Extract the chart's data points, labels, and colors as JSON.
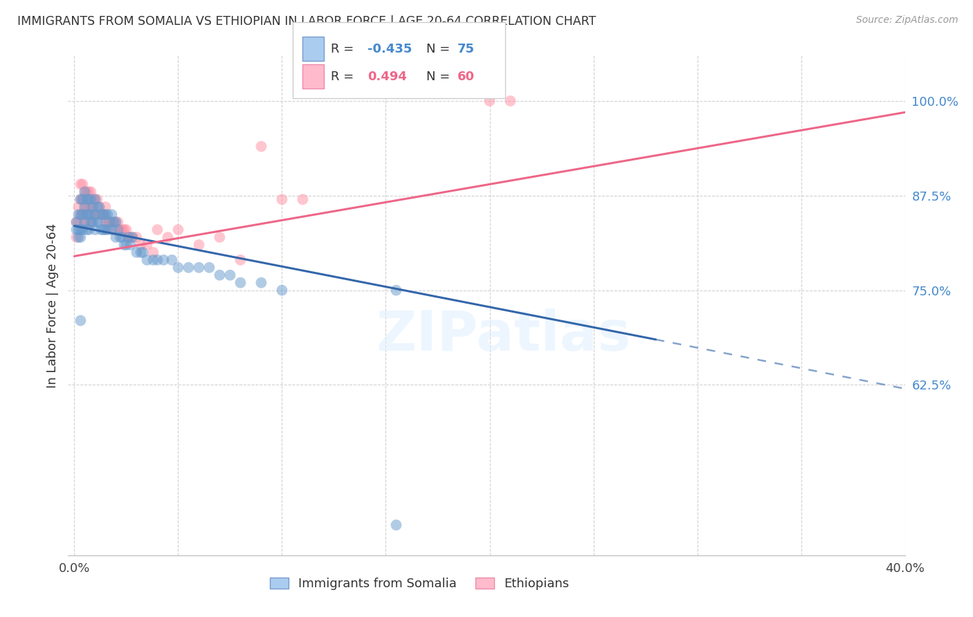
{
  "title": "IMMIGRANTS FROM SOMALIA VS ETHIOPIAN IN LABOR FORCE | AGE 20-64 CORRELATION CHART",
  "source": "Source: ZipAtlas.com",
  "ylabel": "In Labor Force | Age 20-64",
  "y_ticks": [
    0.625,
    0.75,
    0.875,
    1.0
  ],
  "y_tick_labels": [
    "62.5%",
    "75.0%",
    "87.5%",
    "100.0%"
  ],
  "x_tick_positions": [
    0.0,
    0.05,
    0.1,
    0.15,
    0.2,
    0.25,
    0.3,
    0.35,
    0.4
  ],
  "x_tick_labels": [
    "0.0%",
    "",
    "",
    "",
    "",
    "",
    "",
    "",
    "40.0%"
  ],
  "xlim": [
    -0.003,
    0.4
  ],
  "ylim": [
    0.4,
    1.06
  ],
  "somalia_color": "#6699CC",
  "ethiopia_color": "#FF8FA3",
  "somalia_line_color": "#3366AA",
  "ethiopia_line_color": "#EE6688",
  "somalia_R": -0.435,
  "somalia_N": 75,
  "ethiopia_R": 0.494,
  "ethiopia_N": 60,
  "watermark": "ZIPatlas",
  "background_color": "#ffffff",
  "grid_color": "#cccccc",
  "somalia_scatter_x": [
    0.001,
    0.001,
    0.002,
    0.002,
    0.002,
    0.003,
    0.003,
    0.003,
    0.003,
    0.004,
    0.004,
    0.004,
    0.005,
    0.005,
    0.005,
    0.006,
    0.006,
    0.006,
    0.007,
    0.007,
    0.007,
    0.008,
    0.008,
    0.008,
    0.009,
    0.009,
    0.01,
    0.01,
    0.01,
    0.011,
    0.011,
    0.012,
    0.012,
    0.013,
    0.013,
    0.014,
    0.014,
    0.015,
    0.015,
    0.016,
    0.016,
    0.017,
    0.018,
    0.018,
    0.019,
    0.02,
    0.02,
    0.021,
    0.022,
    0.023,
    0.024,
    0.025,
    0.026,
    0.027,
    0.028,
    0.03,
    0.032,
    0.033,
    0.035,
    0.038,
    0.04,
    0.043,
    0.047,
    0.05,
    0.055,
    0.06,
    0.065,
    0.07,
    0.075,
    0.08,
    0.09,
    0.1,
    0.155,
    0.003,
    0.155
  ],
  "somalia_scatter_y": [
    0.84,
    0.83,
    0.85,
    0.83,
    0.82,
    0.87,
    0.85,
    0.83,
    0.82,
    0.87,
    0.85,
    0.83,
    0.88,
    0.86,
    0.84,
    0.87,
    0.85,
    0.83,
    0.87,
    0.85,
    0.83,
    0.87,
    0.85,
    0.84,
    0.86,
    0.84,
    0.87,
    0.85,
    0.83,
    0.86,
    0.84,
    0.86,
    0.84,
    0.85,
    0.83,
    0.85,
    0.83,
    0.85,
    0.83,
    0.85,
    0.83,
    0.84,
    0.85,
    0.83,
    0.84,
    0.84,
    0.82,
    0.83,
    0.82,
    0.82,
    0.81,
    0.81,
    0.82,
    0.81,
    0.82,
    0.8,
    0.8,
    0.8,
    0.79,
    0.79,
    0.79,
    0.79,
    0.79,
    0.78,
    0.78,
    0.78,
    0.78,
    0.77,
    0.77,
    0.76,
    0.76,
    0.75,
    0.75,
    0.71,
    0.44
  ],
  "ethiopia_scatter_x": [
    0.001,
    0.001,
    0.002,
    0.002,
    0.003,
    0.003,
    0.003,
    0.004,
    0.004,
    0.004,
    0.005,
    0.005,
    0.005,
    0.006,
    0.006,
    0.006,
    0.007,
    0.007,
    0.008,
    0.008,
    0.008,
    0.009,
    0.009,
    0.01,
    0.01,
    0.011,
    0.011,
    0.012,
    0.013,
    0.014,
    0.015,
    0.015,
    0.016,
    0.017,
    0.018,
    0.019,
    0.02,
    0.021,
    0.022,
    0.023,
    0.024,
    0.025,
    0.026,
    0.027,
    0.028,
    0.03,
    0.032,
    0.035,
    0.038,
    0.04,
    0.045,
    0.05,
    0.06,
    0.07,
    0.08,
    0.09,
    0.1,
    0.11,
    0.2,
    0.21
  ],
  "ethiopia_scatter_y": [
    0.84,
    0.82,
    0.86,
    0.84,
    0.89,
    0.87,
    0.85,
    0.89,
    0.87,
    0.85,
    0.88,
    0.86,
    0.84,
    0.88,
    0.86,
    0.84,
    0.88,
    0.86,
    0.88,
    0.86,
    0.84,
    0.87,
    0.85,
    0.87,
    0.85,
    0.87,
    0.85,
    0.86,
    0.85,
    0.85,
    0.86,
    0.84,
    0.84,
    0.84,
    0.84,
    0.83,
    0.84,
    0.84,
    0.83,
    0.83,
    0.83,
    0.83,
    0.82,
    0.82,
    0.82,
    0.82,
    0.81,
    0.81,
    0.8,
    0.83,
    0.82,
    0.83,
    0.81,
    0.82,
    0.79,
    0.94,
    0.87,
    0.87,
    1.0,
    1.0
  ],
  "som_line_x0": 0.0,
  "som_line_y0": 0.835,
  "som_line_x1": 0.28,
  "som_line_y1": 0.685,
  "som_line_dash_x1": 0.4,
  "som_line_dash_y1": 0.62,
  "eth_line_x0": 0.0,
  "eth_line_y0": 0.795,
  "eth_line_x1": 0.4,
  "eth_line_y1": 0.985,
  "legend_R1": "R = ",
  "legend_V1": "-0.435",
  "legend_N1": "N = ",
  "legend_NV1": "75",
  "legend_R2": "R =  ",
  "legend_V2": "0.494",
  "legend_N2": "N = ",
  "legend_NV2": "60",
  "label_somalia": "Immigrants from Somalia",
  "label_ethiopia": "Ethiopians"
}
